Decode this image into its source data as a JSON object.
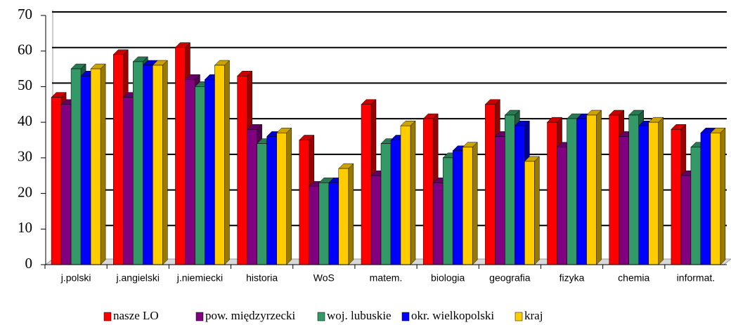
{
  "chart_data": {
    "type": "bar",
    "categories": [
      "j.polski",
      "j.angielski",
      "j.niemiecki",
      "historia",
      "WoS",
      "matem.",
      "biologia",
      "geografia",
      "fizyka",
      "chemia",
      "informat."
    ],
    "series": [
      {
        "name": "nasze LO",
        "color": "#ff0000",
        "values": [
          47,
          59,
          61,
          53,
          35,
          45,
          41,
          45,
          40,
          42,
          38
        ]
      },
      {
        "name": "pow. międzyrzecki",
        "color": "#800080",
        "values": [
          45,
          47,
          52,
          38,
          22,
          25,
          23,
          36,
          33,
          36,
          25
        ]
      },
      {
        "name": "woj. lubuskie",
        "color": "#339966",
        "values": [
          55,
          57,
          50,
          34,
          23,
          34,
          30,
          42,
          41,
          42,
          33
        ]
      },
      {
        "name": "okr. wielkopolski",
        "color": "#0000ff",
        "values": [
          53,
          56,
          52,
          36,
          23,
          35,
          32,
          39,
          41,
          39,
          37
        ]
      },
      {
        "name": "kraj",
        "color": "#ffcc00",
        "values": [
          55,
          56,
          56,
          37,
          27,
          39,
          33,
          29,
          42,
          40,
          37
        ]
      }
    ],
    "ylim": [
      0,
      70
    ],
    "yticks": [
      0,
      10,
      20,
      30,
      40,
      50,
      60,
      70
    ],
    "grid": true,
    "legend": "bottom"
  }
}
